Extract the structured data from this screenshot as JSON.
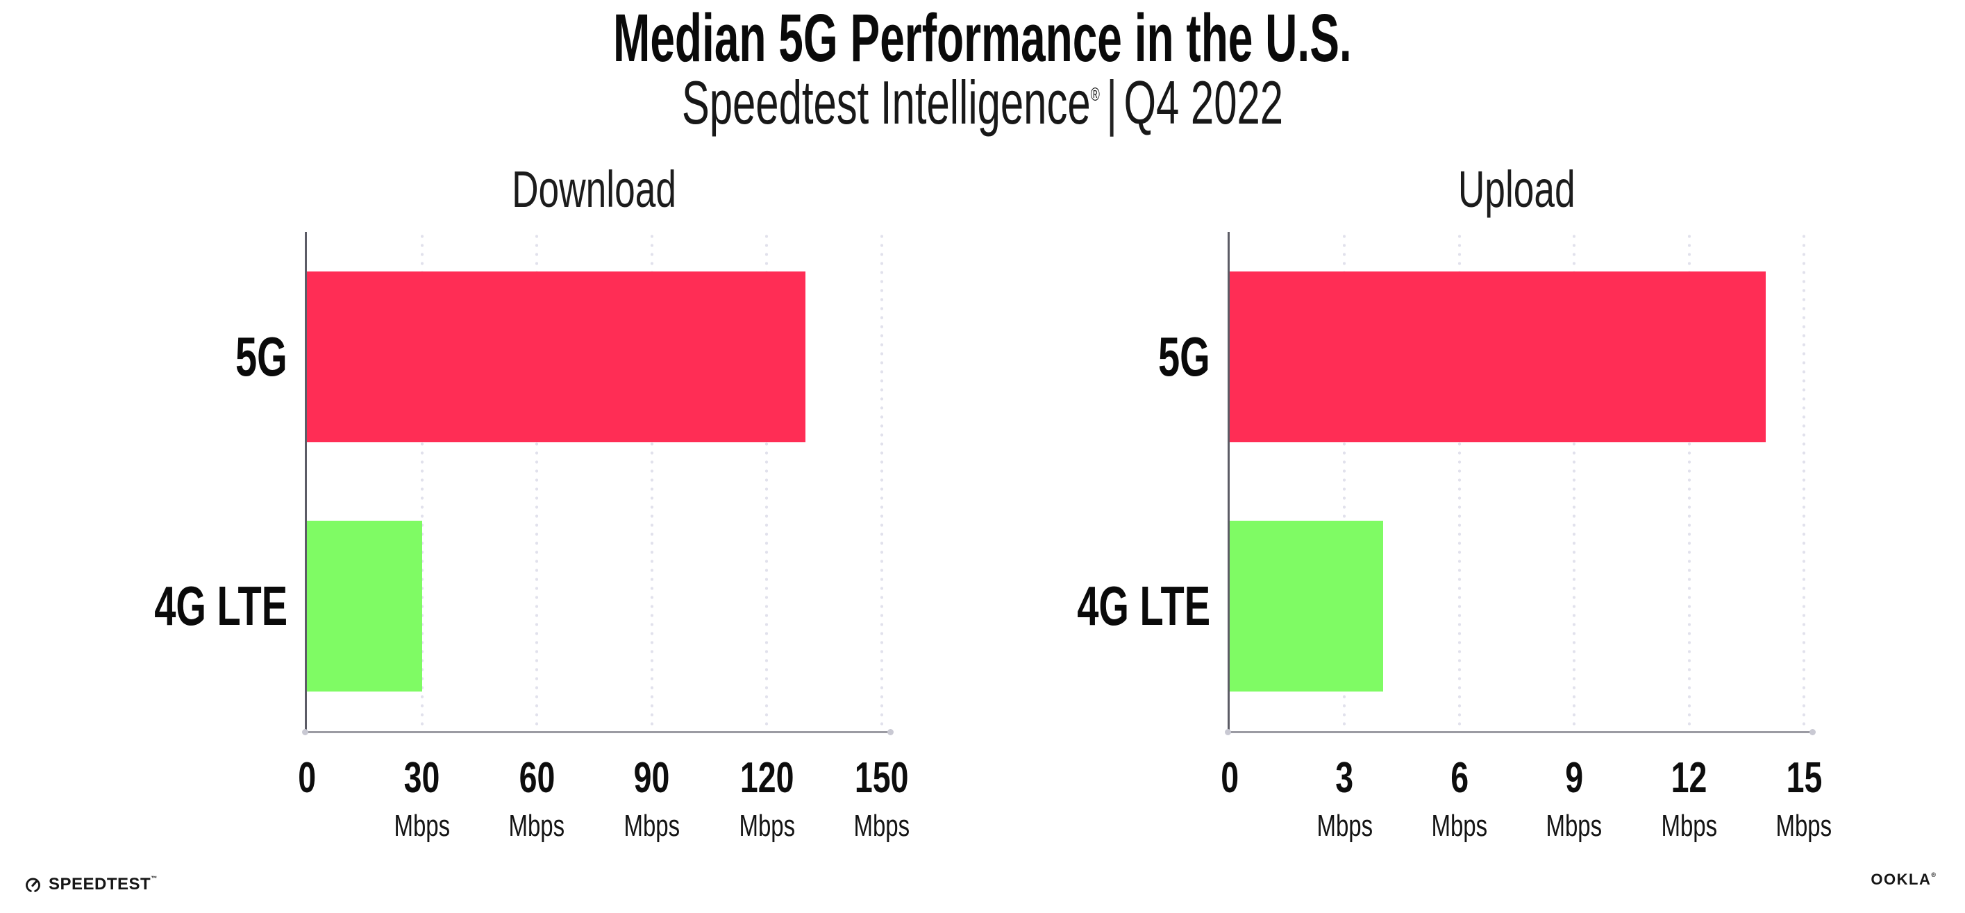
{
  "header": {
    "title": "Median 5G Performance in the U.S.",
    "subtitle": {
      "brand": "Speedtest Intelligence",
      "registered_mark": "®",
      "separator": "|",
      "period": "Q4 2022"
    }
  },
  "chart_data": [
    {
      "type": "bar",
      "orientation": "horizontal",
      "title": "Download",
      "categories": [
        "5G",
        "4G LTE"
      ],
      "values": [
        130,
        30
      ],
      "unit": "Mbps",
      "xlim": [
        0,
        150
      ],
      "xticks": [
        0,
        30,
        60,
        90,
        120,
        150
      ],
      "bar_colors": [
        "#FF2D55",
        "#7FFB64"
      ],
      "grid": "dotted vertical gridline at each tick except 0",
      "legend": "none"
    },
    {
      "type": "bar",
      "orientation": "horizontal",
      "title": "Upload",
      "categories": [
        "5G",
        "4G LTE"
      ],
      "values": [
        14,
        4
      ],
      "unit": "Mbps",
      "xlim": [
        0,
        15
      ],
      "xticks": [
        0,
        3,
        6,
        9,
        12,
        15
      ],
      "bar_colors": [
        "#FF2D55",
        "#7FFB64"
      ],
      "grid": "dotted vertical gridline at each tick except 0",
      "legend": "none"
    }
  ],
  "footer": {
    "speedtest_logo": {
      "text": "SPEEDTEST",
      "trademark": "™",
      "icon": "speedtest-gauge-icon"
    },
    "ookla_logo": {
      "text": "OOKLA",
      "registered_mark": "®"
    }
  },
  "colors": {
    "bar_5g": "#FF2D55",
    "bar_4g_lte": "#7FFB64",
    "x_axis_line": "#9B9BA3",
    "y_axis_line": "#5C5C66",
    "axis_end_dot": "#C9C9D3",
    "gridline_dot": "#E1E1EC",
    "text": "#111111",
    "background": "#FFFFFF"
  }
}
